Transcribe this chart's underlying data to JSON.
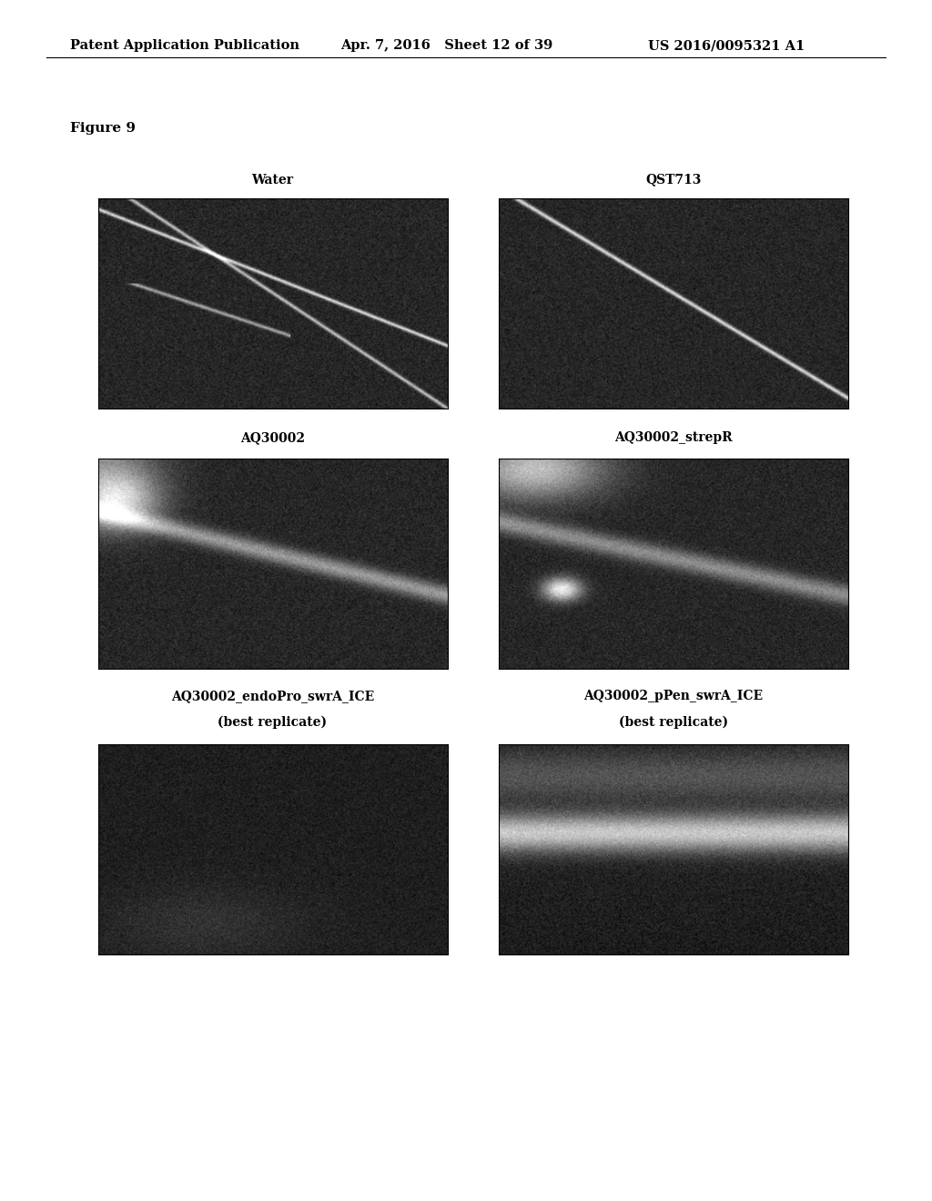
{
  "page_title_left": "Patent Application Publication",
  "page_title_mid": "Apr. 7, 2016   Sheet 12 of 39",
  "page_title_right": "US 2016/0095321 A1",
  "figure_label": "Figure 9",
  "panel_labels": [
    "Water",
    "QST713",
    "AQ30002",
    "AQ30002_strepR",
    "AQ30002_endoPro_swrA_ICE\n(best replicate)",
    "AQ30002_pPen_swrA_ICE\n(best replicate)"
  ],
  "background_color": "#ffffff",
  "text_color": "#000000",
  "header_fontsize": 10.5,
  "figure_label_fontsize": 11,
  "panel_label_fontsize": 10
}
